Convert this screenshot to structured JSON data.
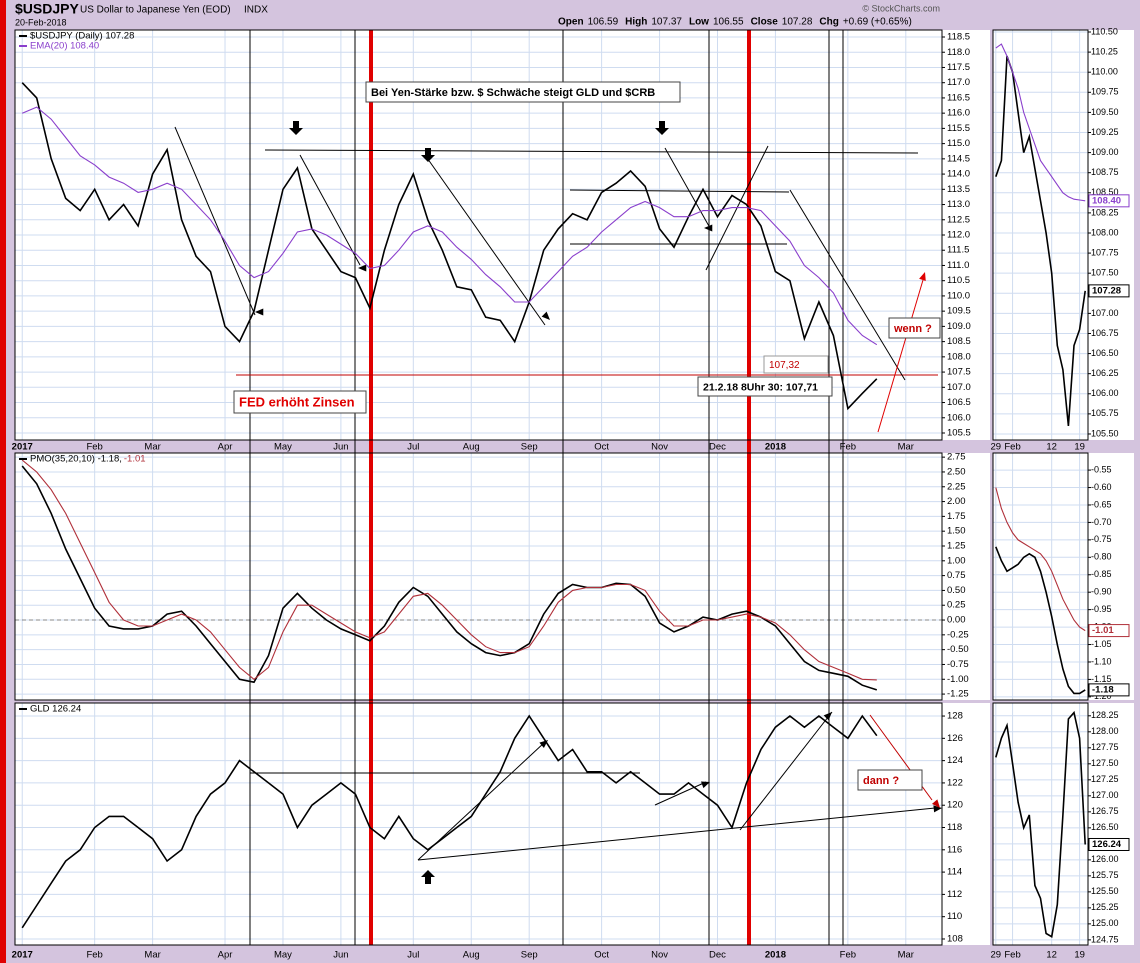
{
  "header": {
    "symbol": "$USDJPY",
    "name": "US Dollar to Japanese Yen (EOD)",
    "exchange": "INDX",
    "date": "20-Feb-2018",
    "copyright": "© StockCharts.com",
    "quote": [
      {
        "label": "Open",
        "value": "106.59"
      },
      {
        "label": "High",
        "value": "107.37"
      },
      {
        "label": "Low",
        "value": "106.55"
      },
      {
        "label": "Close",
        "value": "107.28"
      },
      {
        "label": "Chg",
        "value": "+0.69 (+0.65%)"
      }
    ]
  },
  "annotations": [
    "Bei Yen-Stärke bzw. $ Schwäche steigt GLD und $CRB",
    "FED erhöht Zinsen",
    "107,32",
    "21.2.18 8Uhr 30: 107,71",
    "wenn ?",
    "dann ?"
  ],
  "chart_data": [
    {
      "type": "line",
      "grid": true,
      "categories": [
        "2017",
        null,
        null,
        null,
        null,
        "Feb",
        null,
        null,
        null,
        "Mar",
        null,
        null,
        null,
        null,
        "Apr",
        null,
        null,
        null,
        "May",
        null,
        null,
        null,
        "Jun",
        null,
        null,
        null,
        null,
        "Jul",
        null,
        null,
        null,
        "Aug",
        null,
        null,
        null,
        "Sep",
        null,
        null,
        null,
        null,
        "Oct",
        null,
        null,
        null,
        "Nov",
        null,
        null,
        null,
        "Dec",
        null,
        null,
        null,
        "2018",
        null,
        null,
        null,
        null,
        "Feb",
        null,
        null,
        null,
        "Mar",
        null,
        null
      ],
      "series": [
        {
          "name": "$USDJPY (Daily) 107.28",
          "color": "#000000",
          "values": [
            117.0,
            116.5,
            114.5,
            113.2,
            112.8,
            113.5,
            112.5,
            113.0,
            112.3,
            114.0,
            114.8,
            112.5,
            111.3,
            110.8,
            109.0,
            108.5,
            109.5,
            111.5,
            113.5,
            114.2,
            112.2,
            111.5,
            110.8,
            110.6,
            109.6,
            111.5,
            113.0,
            114.0,
            112.5,
            111.5,
            110.3,
            110.2,
            109.3,
            109.2,
            108.5,
            109.8,
            111.5,
            112.2,
            112.7,
            112.5,
            113.4,
            113.7,
            114.1,
            113.6,
            112.2,
            111.6,
            112.6,
            113.5,
            112.6,
            113.3,
            113.0,
            112.3,
            110.8,
            110.5,
            108.6,
            109.8,
            108.7,
            106.3,
            106.8,
            107.28,
            null,
            null,
            null,
            null
          ]
        },
        {
          "name": "EMA(20) 108.40",
          "color": "#8a3fcc",
          "values": [
            116.0,
            116.2,
            115.8,
            115.2,
            114.6,
            114.3,
            113.9,
            113.7,
            113.4,
            113.5,
            113.7,
            113.5,
            113.0,
            112.5,
            111.8,
            111.0,
            110.6,
            110.8,
            111.4,
            112.1,
            112.2,
            112.0,
            111.7,
            111.4,
            110.9,
            111.0,
            111.5,
            112.1,
            112.3,
            112.1,
            111.6,
            111.2,
            110.7,
            110.3,
            109.8,
            109.8,
            110.3,
            110.8,
            111.3,
            111.6,
            112.1,
            112.5,
            112.9,
            113.1,
            112.9,
            112.6,
            112.6,
            112.8,
            112.8,
            112.9,
            112.9,
            112.8,
            112.3,
            111.8,
            111.0,
            110.6,
            110.1,
            109.2,
            108.7,
            108.4,
            null,
            null,
            null,
            null
          ]
        }
      ],
      "ylim": [
        105.27,
        118.73
      ],
      "yticks": [
        118.5,
        {
          "value": 118,
          "label": "118.0"
        },
        117.5,
        {
          "value": 117,
          "label": "117.0"
        },
        116.5,
        {
          "value": 116,
          "label": "116.0"
        },
        115.5,
        {
          "value": 115,
          "label": "115.0"
        },
        114.5,
        {
          "value": 114,
          "label": "114.0"
        },
        113.5,
        {
          "value": 113,
          "label": "113.0"
        },
        112.5,
        {
          "value": 112,
          "label": "112.0"
        },
        111.5,
        {
          "value": 111,
          "label": "111.0"
        },
        110.5,
        {
          "value": 110,
          "label": "110.0"
        },
        109.5,
        {
          "value": 109,
          "label": "109.0"
        },
        108.5,
        {
          "value": 108,
          "label": "108.0"
        },
        107.5,
        {
          "value": 107,
          "label": "107.0"
        },
        106.5,
        {
          "value": 106,
          "label": "106.0"
        },
        105.5
      ]
    },
    {
      "type": "line",
      "grid": true,
      "zero_line": 0,
      "series": [
        {
          "name": "PMO(35,20,10) -1.18,",
          "color": "#000000",
          "values": [
            2.6,
            2.3,
            1.8,
            1.2,
            0.7,
            0.2,
            -0.1,
            -0.15,
            -0.15,
            -0.1,
            0.1,
            0.15,
            -0.1,
            -0.4,
            -0.7,
            -1.0,
            -1.05,
            -0.6,
            0.2,
            0.45,
            0.2,
            0.0,
            -0.15,
            -0.25,
            -0.35,
            -0.1,
            0.3,
            0.55,
            0.4,
            0.1,
            -0.2,
            -0.4,
            -0.55,
            -0.6,
            -0.55,
            -0.4,
            0.1,
            0.45,
            0.6,
            0.55,
            0.55,
            0.62,
            0.6,
            0.4,
            -0.05,
            -0.2,
            -0.1,
            0.05,
            0.0,
            0.1,
            0.15,
            0.05,
            -0.1,
            -0.4,
            -0.7,
            -0.85,
            -0.9,
            -0.95,
            -1.1,
            -1.18,
            null,
            null,
            null,
            null
          ]
        },
        {
          "name": "-1.01",
          "color": "#b0303a",
          "values": [
            2.7,
            2.5,
            2.2,
            1.8,
            1.3,
            0.8,
            0.3,
            0.0,
            -0.1,
            -0.1,
            0.0,
            0.1,
            0.0,
            -0.2,
            -0.5,
            -0.8,
            -1.0,
            -0.8,
            -0.2,
            0.25,
            0.25,
            0.1,
            -0.05,
            -0.2,
            -0.3,
            -0.2,
            0.1,
            0.4,
            0.45,
            0.25,
            0.0,
            -0.25,
            -0.45,
            -0.55,
            -0.55,
            -0.45,
            -0.1,
            0.3,
            0.5,
            0.55,
            0.55,
            0.6,
            0.6,
            0.5,
            0.15,
            -0.1,
            -0.1,
            0.0,
            0.0,
            0.05,
            0.1,
            0.05,
            -0.05,
            -0.25,
            -0.5,
            -0.7,
            -0.8,
            -0.9,
            -1.0,
            -1.01,
            null,
            null,
            null,
            null
          ]
        }
      ],
      "ylim": [
        -1.35,
        2.82
      ],
      "yticks": [
        2.75,
        {
          "value": 2.5,
          "label": "2.50"
        },
        2.25,
        {
          "value": 2,
          "label": "2.00"
        },
        1.75,
        {
          "value": 1.5,
          "label": "1.50"
        },
        1.25,
        {
          "value": 1,
          "label": "1.00"
        },
        0.75,
        {
          "value": 0.5,
          "label": "0.50"
        },
        0.25,
        {
          "value": 0,
          "label": "0.00"
        },
        -0.25,
        {
          "value": -0.5,
          "label": "-0.50"
        },
        -0.75,
        {
          "value": -1,
          "label": "-1.00"
        },
        -1.25
      ]
    },
    {
      "type": "line",
      "grid": true,
      "categories": [
        "2017",
        null,
        null,
        null,
        null,
        "Feb",
        null,
        null,
        null,
        "Mar",
        null,
        null,
        null,
        null,
        "Apr",
        null,
        null,
        null,
        "May",
        null,
        null,
        null,
        "Jun",
        null,
        null,
        null,
        null,
        "Jul",
        null,
        null,
        null,
        "Aug",
        null,
        null,
        null,
        "Sep",
        null,
        null,
        null,
        null,
        "Oct",
        null,
        null,
        null,
        "Nov",
        null,
        null,
        null,
        "Dec",
        null,
        null,
        null,
        "2018",
        null,
        null,
        null,
        null,
        "Feb",
        null,
        null,
        null,
        "Mar",
        null,
        null
      ],
      "series": [
        {
          "name": "GLD 126.24",
          "color": "#000000",
          "values": [
            109,
            111,
            113,
            115,
            116,
            118,
            119,
            119,
            118,
            117,
            115,
            116,
            119,
            121,
            122,
            124,
            123,
            122,
            121,
            118,
            120,
            121,
            122,
            121,
            118,
            117,
            119,
            117,
            116,
            117,
            118,
            119,
            121,
            123,
            126,
            128,
            126,
            124,
            125,
            123,
            123,
            122,
            123,
            122,
            121,
            121,
            122,
            121,
            120,
            118,
            122,
            125,
            127,
            128,
            127,
            128,
            127,
            126,
            128,
            126.24,
            null,
            null,
            null,
            null
          ]
        }
      ],
      "ylim": [
        107.46,
        129.17
      ],
      "yticks": [
        128,
        126,
        124,
        122,
        120,
        118,
        116,
        114,
        112,
        110,
        108
      ]
    },
    {
      "type": "line",
      "grid": true,
      "categories": [
        "29",
        null,
        null,
        "Feb",
        null,
        null,
        null,
        null,
        null,
        null,
        "12",
        null,
        null,
        null,
        null,
        "19",
        null
      ],
      "series": [
        {
          "name": "$USDJPY",
          "color": "#000000",
          "tag": "107.28",
          "values": [
            108.7,
            108.9,
            110.2,
            110.0,
            109.5,
            109.0,
            109.2,
            108.8,
            108.4,
            108.0,
            107.5,
            106.6,
            106.3,
            105.6,
            106.6,
            106.8,
            107.28
          ]
        },
        {
          "name": "EMA(20)",
          "color": "#8a3fcc",
          "tag": "108.40",
          "values": [
            110.3,
            110.35,
            110.2,
            110.0,
            109.8,
            109.5,
            109.3,
            109.1,
            108.9,
            108.8,
            108.7,
            108.6,
            108.5,
            108.45,
            108.42,
            108.41,
            108.4
          ]
        }
      ],
      "ylim": [
        105.425,
        110.525
      ],
      "yticks": [
        {
          "value": 110.5,
          "label": "110.50"
        },
        110.25,
        {
          "value": 110,
          "label": "110.00"
        },
        109.75,
        {
          "value": 109.5,
          "label": "109.50"
        },
        109.25,
        {
          "value": 109,
          "label": "109.00"
        },
        108.75,
        {
          "value": 108.5,
          "label": "108.50"
        },
        108.25,
        {
          "value": 108,
          "label": "108.00"
        },
        107.75,
        {
          "value": 107.5,
          "label": "107.50"
        },
        107.25,
        {
          "value": 107,
          "label": "107.00"
        },
        106.75,
        {
          "value": 106.5,
          "label": "106.50"
        },
        106.25,
        {
          "value": 106,
          "label": "106.00"
        },
        105.75,
        {
          "value": 105.5,
          "label": "105.50"
        }
      ]
    },
    {
      "type": "line",
      "grid": true,
      "series": [
        {
          "name": "PMO",
          "color": "#000000",
          "tag": "-1.18",
          "values": [
            -0.77,
            -0.81,
            -0.84,
            -0.83,
            -0.82,
            -0.8,
            -0.79,
            -0.8,
            -0.84,
            -0.9,
            -0.97,
            -1.05,
            -1.12,
            -1.17,
            -1.19,
            -1.19,
            -1.18
          ]
        },
        {
          "name": "Signal",
          "color": "#b0303a",
          "tag": "-1.01",
          "values": [
            -0.6,
            -0.66,
            -0.7,
            -0.73,
            -0.75,
            -0.76,
            -0.77,
            -0.78,
            -0.79,
            -0.81,
            -0.84,
            -0.88,
            -0.92,
            -0.95,
            -0.98,
            -1.0,
            -1.01
          ]
        }
      ],
      "ylim": [
        -1.209,
        -0.501
      ],
      "yticks": [
        -0.55,
        {
          "value": -0.6,
          "label": "-0.60"
        },
        -0.65,
        {
          "value": -0.7,
          "label": "-0.70"
        },
        -0.75,
        {
          "value": -0.8,
          "label": "-0.80"
        },
        -0.85,
        {
          "value": -0.9,
          "label": "-0.90"
        },
        -0.95,
        {
          "value": -1,
          "label": "-1.00"
        },
        -1.05,
        {
          "value": -1.1,
          "label": "-1.10"
        },
        -1.15,
        {
          "value": -1.2,
          "label": "-1.20"
        }
      ]
    },
    {
      "type": "line",
      "grid": true,
      "categories": [
        "29",
        null,
        null,
        "Feb",
        null,
        null,
        null,
        null,
        null,
        null,
        "12",
        null,
        null,
        null,
        null,
        "19",
        null
      ],
      "series": [
        {
          "name": "GLD",
          "color": "#000000",
          "tag": "126.24",
          "values": [
            127.6,
            127.9,
            128.1,
            127.5,
            126.9,
            126.5,
            126.7,
            125.6,
            125.4,
            124.85,
            124.8,
            125.3,
            126.7,
            128.2,
            128.3,
            127.9,
            126.24
          ]
        }
      ],
      "ylim": [
        124.67,
        128.45
      ],
      "yticks": [
        128.25,
        {
          "value": 128,
          "label": "128.00"
        },
        127.75,
        {
          "value": 127.5,
          "label": "127.50"
        },
        127.25,
        {
          "value": 127,
          "label": "127.00"
        },
        126.75,
        {
          "value": 126.5,
          "label": "126.50"
        },
        126.25,
        {
          "value": 126,
          "label": "126.00"
        },
        125.75,
        {
          "value": 125.5,
          "label": "125.50"
        },
        125.25,
        {
          "value": 125,
          "label": "125.00"
        },
        124.75
      ]
    }
  ]
}
